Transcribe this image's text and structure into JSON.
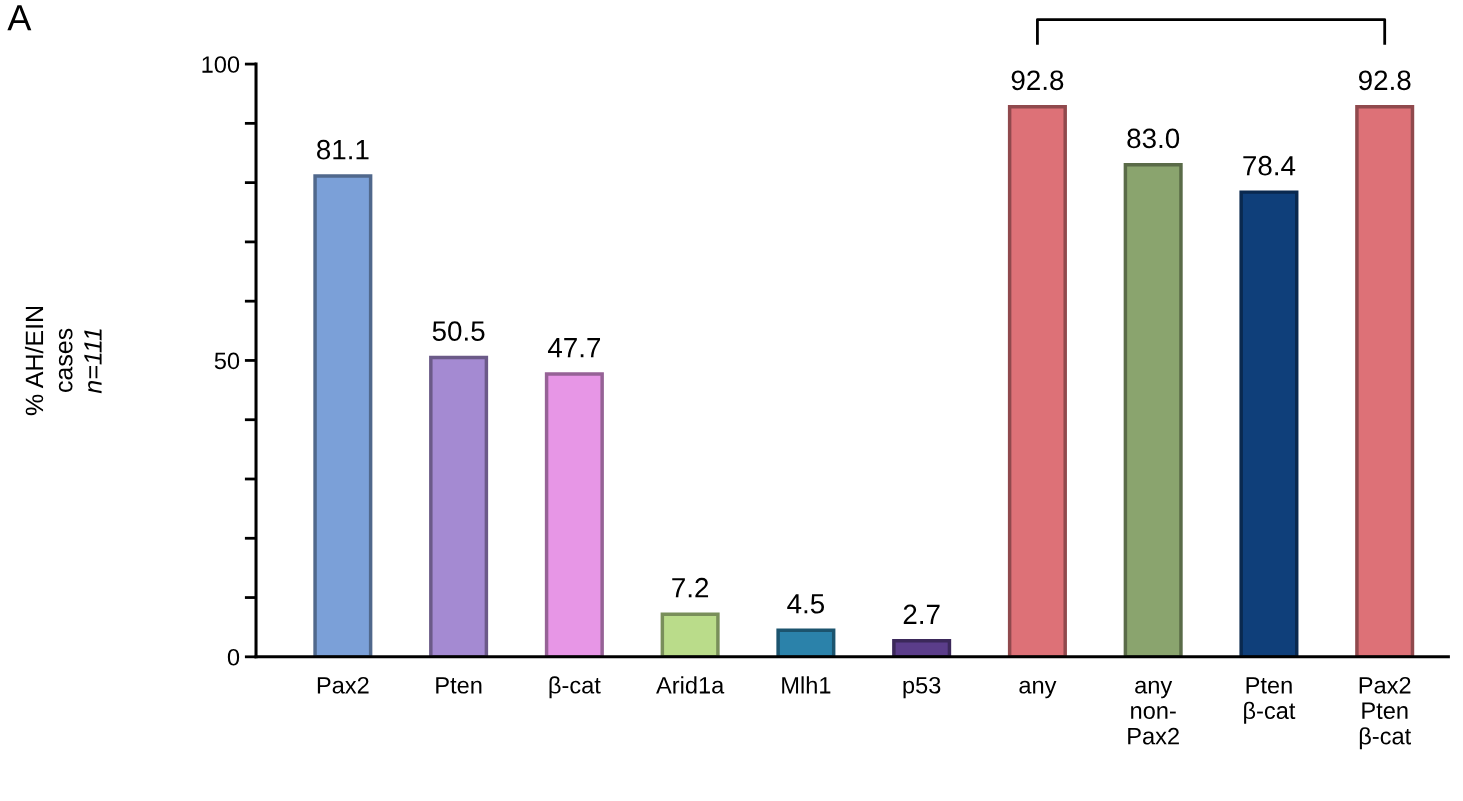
{
  "chart_data": {
    "type": "bar",
    "ylabel": "% AH/EIN\ncases\nn=111",
    "categories": [
      "Pax2",
      "Pten",
      "β-cat",
      "Arid1a",
      "Mlh1",
      "p53",
      "any",
      "any\nnon-\nPax2",
      "Pten\nβ-cat",
      "Pax2\nPten\nβ-cat"
    ],
    "values": [
      81.1,
      50.5,
      47.7,
      7.2,
      4.5,
      2.7,
      92.8,
      83.0,
      78.4,
      92.8
    ],
    "colors": [
      "#7ba0d8",
      "#a48ad2",
      "#e796e6",
      "#badc8a",
      "#2b82aa",
      "#5b3d8a",
      "#dd7177",
      "#8aa46e",
      "#0f3f7a",
      "#dd7177"
    ],
    "value_labels": [
      "81.1",
      "50.5",
      "47.7",
      "7.2",
      "4.5",
      "2.7",
      "92.8",
      "83.0",
      "78.4",
      "92.8"
    ],
    "ylim": [
      0,
      100
    ],
    "yticks": [
      0,
      {
        "value": 10,
        "label": null
      },
      {
        "value": 20,
        "label": null
      },
      {
        "value": 30,
        "label": null
      },
      {
        "value": 40,
        "label": null
      },
      50,
      {
        "value": 60,
        "label": null
      },
      {
        "value": 70,
        "label": null
      },
      {
        "value": 80,
        "label": null
      },
      {
        "value": 90,
        "label": null
      },
      100
    ],
    "grid": false,
    "legend": false,
    "annotations": [
      "A"
    ]
  }
}
